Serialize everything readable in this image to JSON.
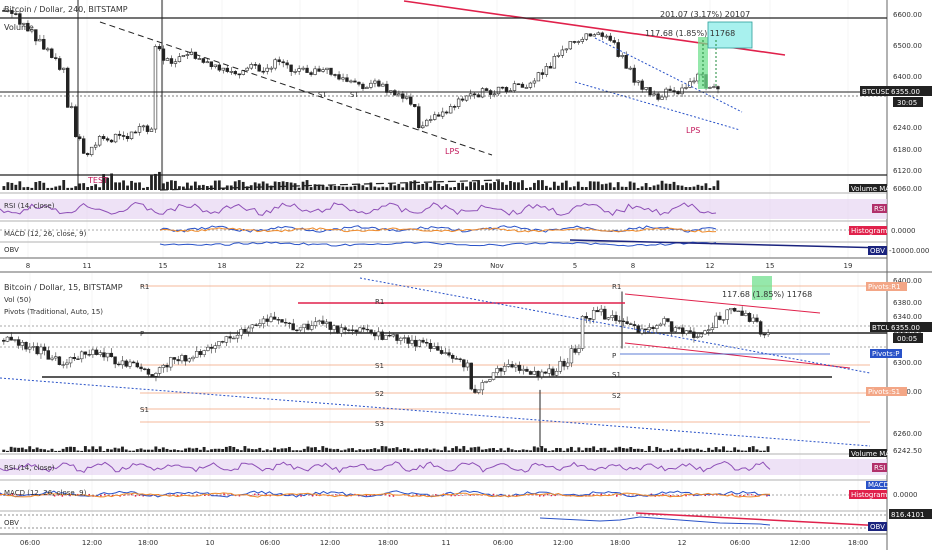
{
  "colors": {
    "up": "#26a69a",
    "down": "#222222",
    "red": "#e0214b",
    "blue": "#2952c8",
    "grid": "#eeeeee",
    "rsi_band": "#e7d6f2",
    "rsi_line": "#8e4fb7",
    "hist": "#e0214b",
    "green_box": "#71e08f",
    "cyan_box": "#a8f1ee"
  },
  "top_chart": {
    "title": "Bitcoin / Dollar, 240, BITSTAMP",
    "volume_label": "Volume",
    "price_tag": "BTCUSD",
    "price_value": "6355.00",
    "countdown": "30:05",
    "annotations": {
      "measure_top": "201.07 (3.17%) 20107",
      "measure_box": "117.68 (1.85%) 11768",
      "lps1": "LPS",
      "lps2": "LPS",
      "test": "TEST",
      "st1": "ST",
      "st2": "ST"
    },
    "indicators": {
      "rsi": "RSI (14, close)",
      "macd": "MACD (12, 26, close, 9)",
      "obv": "OBV"
    },
    "right_tags": {
      "volume_ma": "Volume MA",
      "rsi": "RSI",
      "histogram": "Histogram",
      "macd_zero": "0.0000",
      "obv_low": "-10000.000",
      "obv": "OBV"
    },
    "y_axis": [
      "6600.00",
      "6500.00",
      "6400.00",
      "6320.00",
      "6240.00",
      "6180.00",
      "6120.00",
      "6060.00"
    ],
    "x_axis": [
      "8",
      "11",
      "15",
      "18",
      "22",
      "25",
      "29",
      "Nov",
      "5",
      "8",
      "12",
      "15",
      "19"
    ]
  },
  "bottom_chart": {
    "title": "Bitcoin / Dollar, 15, BITSTAMP",
    "volume_label": "Vol (50)",
    "pivots_label": "Pivots (Traditional, Auto, 15)",
    "price_tag": "BTCUSD",
    "price_value": "6355.00",
    "countdown": "00:05",
    "pivot_tags": {
      "r1": "Pivots:R1",
      "p": "Pivots:P",
      "s1": "Pivots:S1"
    },
    "pivot_levels": {
      "r1": "R1",
      "p": "P",
      "s1": "S1",
      "s2": "S2",
      "s3": "S3"
    },
    "annotations": {
      "measure_box": "117.68 (1.85%) 11768"
    },
    "indicators": {
      "rsi": "RSI (14, close)",
      "macd": "MACD (12, 26, close, 9)",
      "obv": "OBV"
    },
    "right_tags": {
      "volume_ma": "Volume MA",
      "rsi": "RSI",
      "macd": "MACD",
      "histogram": "Histogram",
      "macd_zero": "0.0000",
      "obv_value": "816.4101",
      "obv": "OBV"
    },
    "y_axis": [
      "6400.00",
      "6380.00",
      "6340.00",
      "6320.00",
      "6300.00",
      "6280.00",
      "6260.00",
      "6242.50"
    ],
    "x_axis": [
      "06:00",
      "12:00",
      "18:00",
      "10",
      "06:00",
      "12:00",
      "18:00",
      "11",
      "06:00",
      "12:00",
      "18:00",
      "12",
      "06:00",
      "12:00",
      "18:00"
    ]
  },
  "chart_data": [
    {
      "type": "candlestick",
      "title": "Bitcoin / Dollar, 240, BITSTAMP",
      "x_ticks": [
        "8",
        "11",
        "15",
        "18",
        "22",
        "25",
        "29",
        "Nov",
        "5",
        "8",
        "12",
        "15",
        "19"
      ],
      "ylim": [
        6040,
        6620
      ],
      "y_ticks": [
        6600,
        6500,
        6400,
        6320,
        6240,
        6180,
        6120,
        6060
      ],
      "close_series": [
        6600,
        6590,
        6560,
        6540,
        6510,
        6480,
        6450,
        6420,
        6300,
        6200,
        6150,
        6180,
        6200,
        6190,
        6210,
        6200,
        6220,
        6240,
        6230,
        6480,
        6450,
        6440,
        6460,
        6470,
        6450,
        6440,
        6430,
        6420,
        6410,
        6400,
        6420,
        6430,
        6410,
        6420,
        6440,
        6430,
        6410,
        6420,
        6400,
        6410,
        6420,
        6400,
        6390,
        6380,
        6370,
        6360,
        6380,
        6370,
        6350,
        6340,
        6330,
        6300,
        6240,
        6260,
        6270,
        6280,
        6300,
        6320,
        6340,
        6330,
        6350,
        6340,
        6360,
        6350,
        6370,
        6360,
        6380,
        6400,
        6420,
        6460,
        6480,
        6500,
        6510,
        6520,
        6530,
        6520,
        6500,
        6460,
        6420,
        6380,
        6360,
        6340,
        6330,
        6350,
        6340,
        6360,
        6380,
        6400,
        6360,
        6355
      ],
      "last": 6355.0,
      "measure": "201.07 (3.17%) 20107"
    },
    {
      "type": "candlestick",
      "title": "Bitcoin / Dollar, 15, BITSTAMP",
      "x_ticks": [
        "06:00",
        "12:00",
        "18:00",
        "10",
        "06:00",
        "12:00",
        "18:00",
        "11",
        "06:00",
        "12:00",
        "18:00",
        "12",
        "06:00",
        "12:00",
        "18:00"
      ],
      "ylim": [
        6240,
        6410
      ],
      "y_ticks": [
        6400,
        6380,
        6340,
        6320,
        6300,
        6280,
        6260,
        6242.5
      ],
      "close_series": [
        6348,
        6346,
        6342,
        6338,
        6332,
        6326,
        6330,
        6334,
        6336,
        6332,
        6328,
        6326,
        6320,
        6316,
        6322,
        6328,
        6330,
        6334,
        6340,
        6346,
        6350,
        6356,
        6362,
        6366,
        6368,
        6364,
        6360,
        6362,
        6364,
        6362,
        6358,
        6356,
        6358,
        6356,
        6352,
        6350,
        6348,
        6346,
        6342,
        6336,
        6330,
        6326,
        6300,
        6310,
        6318,
        6322,
        6320,
        6318,
        6316,
        6318,
        6326,
        6340,
        6368,
        6378,
        6372,
        6366,
        6362,
        6358,
        6362,
        6366,
        6360,
        6356,
        6354,
        6360,
        6368,
        6376,
        6374,
        6366,
        6355
      ],
      "last": 6355.0,
      "pivots": {
        "R1": 6396,
        "P": 6336,
        "S1": 6314,
        "S2": 6300,
        "S3": 6268
      },
      "measure": "117.68 (1.85%) 11768"
    }
  ]
}
